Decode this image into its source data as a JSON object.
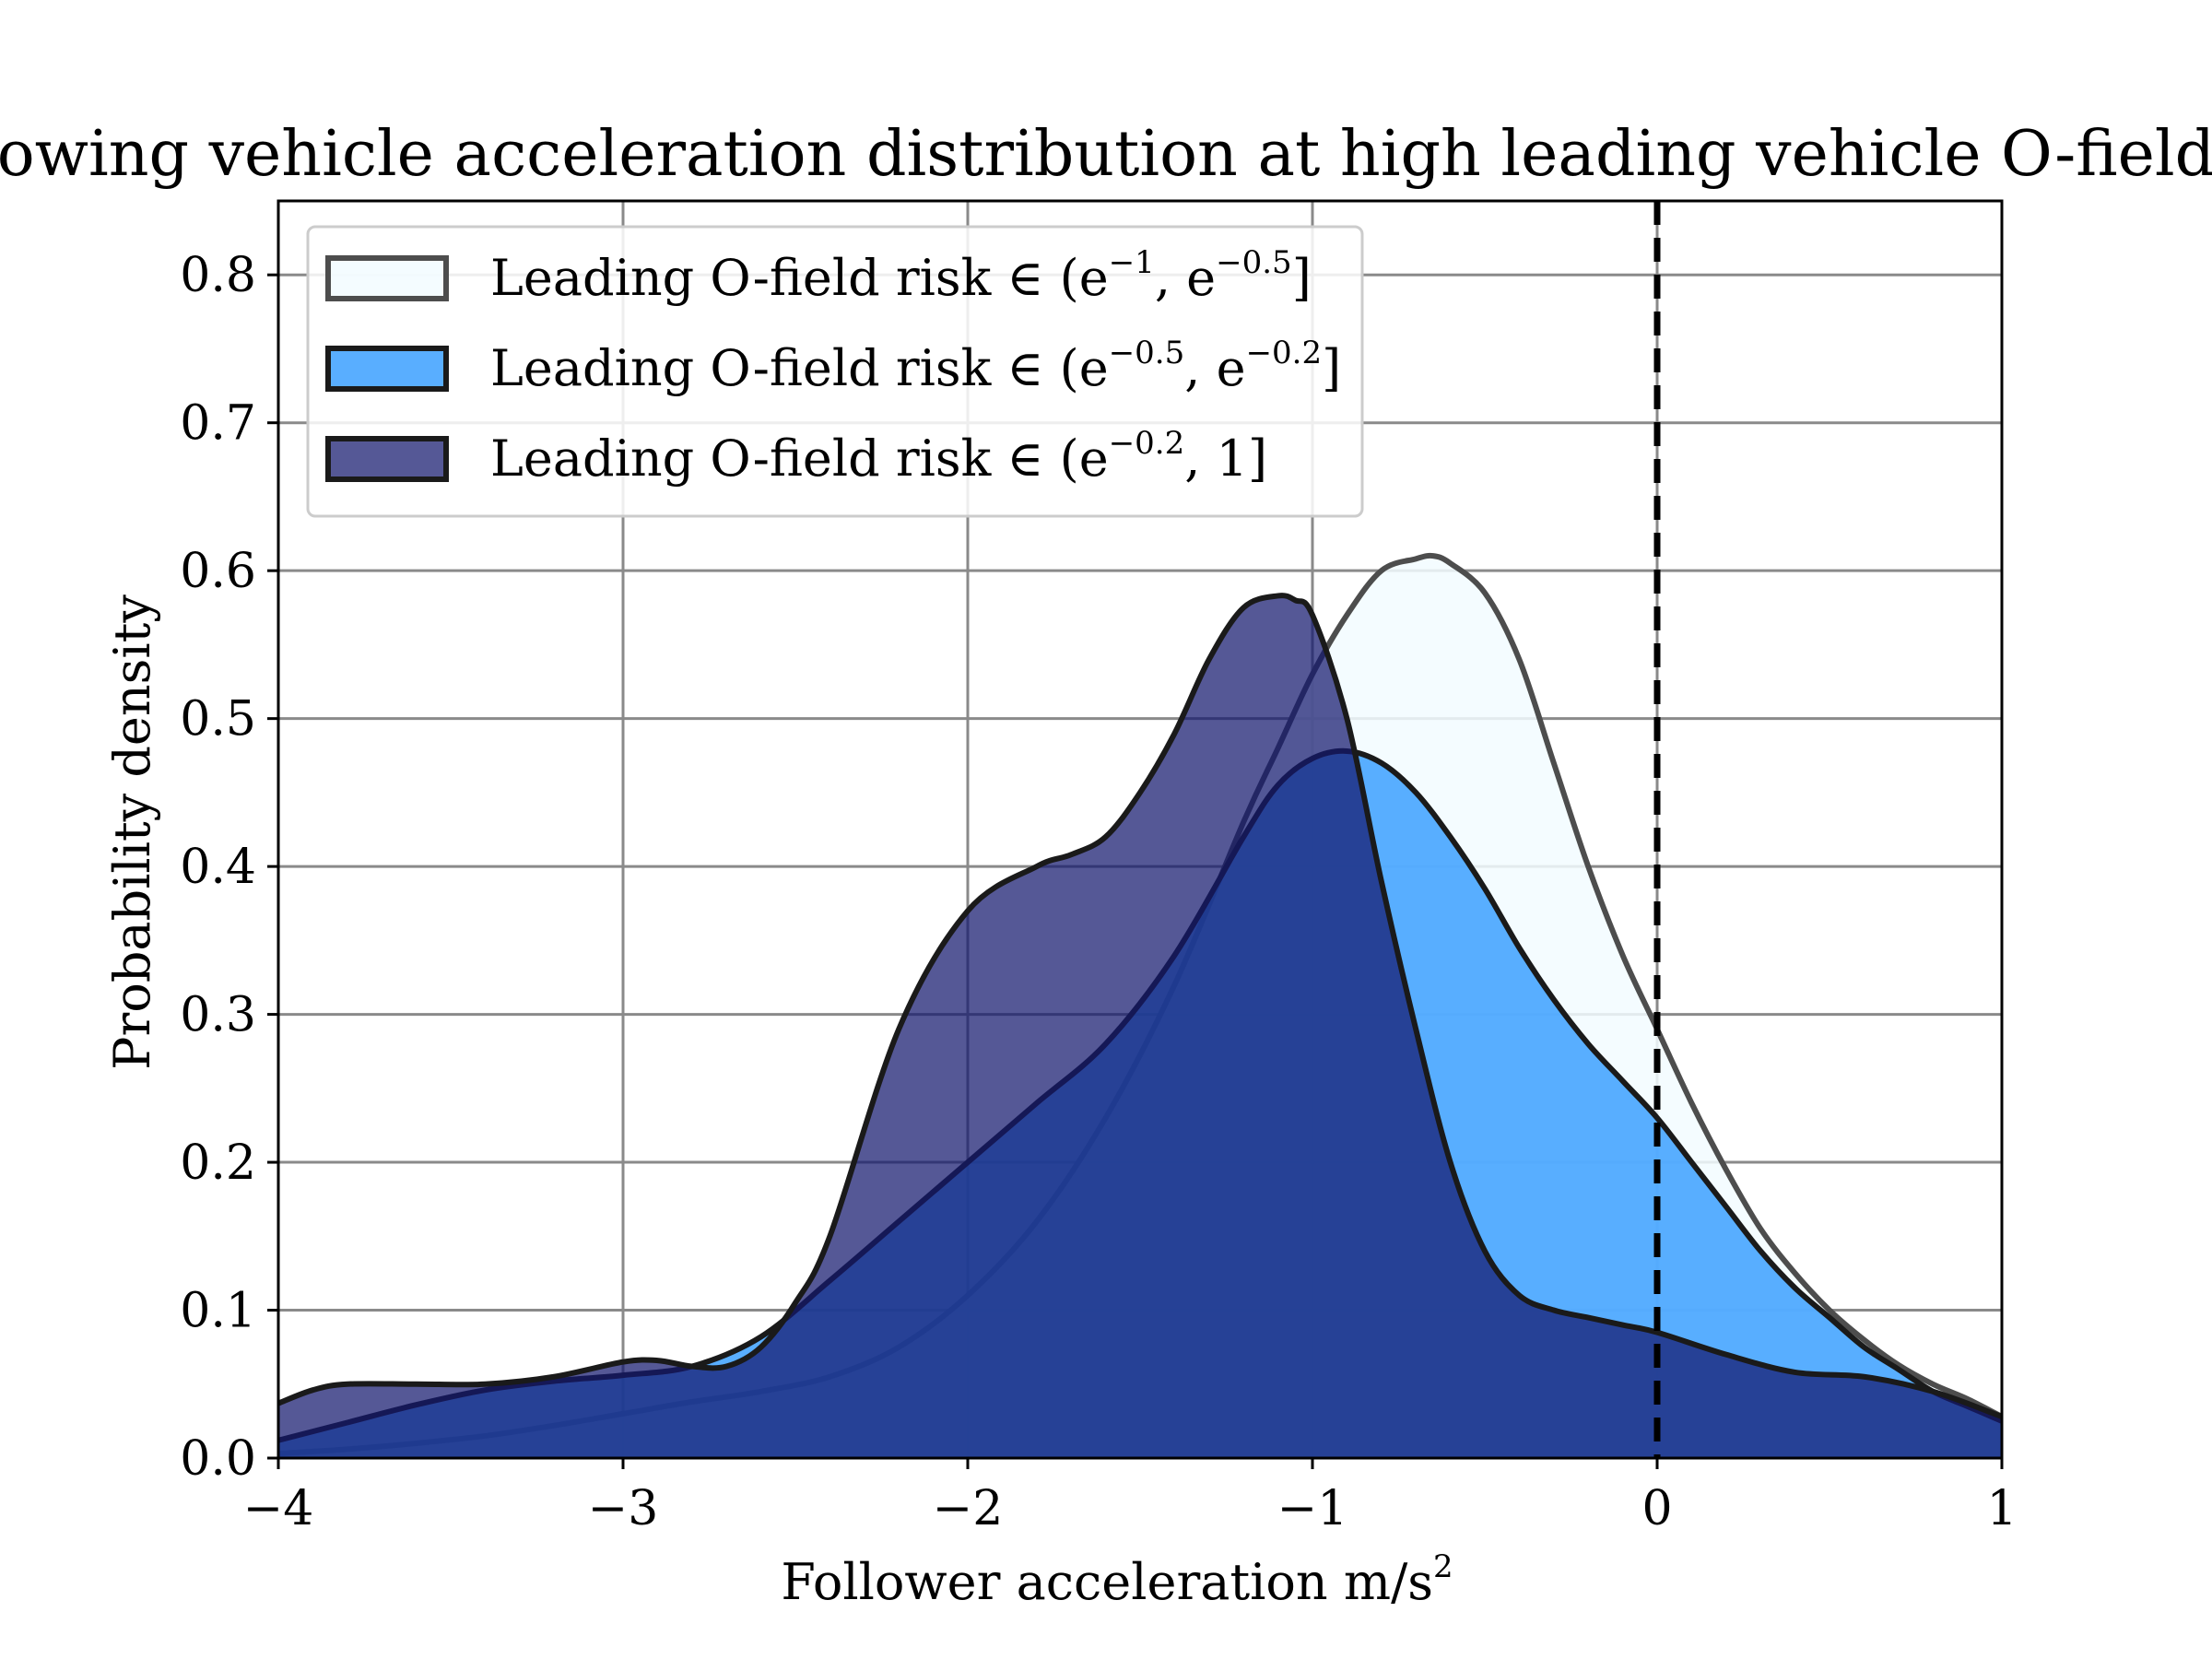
{
  "chart_data": {
    "type": "area",
    "title": "Following vehicle acceleration distribution at high leading vehicle O-field risk",
    "xlabel": "Follower acceleration m/s",
    "xlabel_sup": "2",
    "ylabel": "Probability density",
    "xlim": [
      -4,
      1
    ],
    "ylim": [
      0,
      0.85
    ],
    "xticks": [
      -4,
      -3,
      -2,
      -1,
      0,
      1
    ],
    "xtick_labels": [
      "−4",
      "−3",
      "−2",
      "−1",
      "0",
      "1"
    ],
    "yticks": [
      0.0,
      0.1,
      0.2,
      0.3,
      0.4,
      0.5,
      0.6,
      0.7,
      0.8
    ],
    "ytick_labels": [
      "0.0",
      "0.1",
      "0.2",
      "0.3",
      "0.4",
      "0.5",
      "0.6",
      "0.7",
      "0.8"
    ],
    "grid": true,
    "legend_position": "top-left",
    "vline": {
      "x": 0,
      "style": "dashed",
      "color": "#000000"
    },
    "series": [
      {
        "name": "Leading O-field risk ∈ (e^-1, e^-0.5]",
        "legend": {
          "prefix": "Leading O-field risk ∈ (",
          "a": "e",
          "a_sup": "−1",
          "sep": ", ",
          "b": "e",
          "b_sup": "−0.5",
          "suffix": "]"
        },
        "fill": "#f2fcff",
        "fill_opacity": 0.85,
        "stroke": "#4d4d4d",
        "x": [
          -4,
          -3.8,
          -3.6,
          -3.4,
          -3.2,
          -3,
          -2.8,
          -2.6,
          -2.4,
          -2.2,
          -2,
          -1.8,
          -1.6,
          -1.4,
          -1.2,
          -1.1,
          -1,
          -0.9,
          -0.8,
          -0.7,
          -0.65,
          -0.6,
          -0.5,
          -0.4,
          -0.3,
          -0.2,
          -0.1,
          0,
          0.1,
          0.2,
          0.3,
          0.4,
          0.5,
          0.6,
          0.7,
          0.8,
          0.9,
          1
        ],
        "values": [
          0.003,
          0.006,
          0.01,
          0.015,
          0.022,
          0.03,
          0.038,
          0.045,
          0.055,
          0.075,
          0.11,
          0.16,
          0.23,
          0.32,
          0.43,
          0.48,
          0.53,
          0.57,
          0.6,
          0.608,
          0.61,
          0.605,
          0.585,
          0.54,
          0.47,
          0.4,
          0.34,
          0.29,
          0.24,
          0.195,
          0.155,
          0.125,
          0.1,
          0.08,
          0.063,
          0.05,
          0.04,
          0.028
        ]
      },
      {
        "name": "Leading O-field risk ∈ (e^-0.5, e^-0.2]",
        "legend": {
          "prefix": "Leading O-field risk ∈ (",
          "a": "e",
          "a_sup": "−0.5",
          "sep": ", ",
          "b": "e",
          "b_sup": "−0.2",
          "suffix": "]"
        },
        "fill": "#3ca0ff",
        "fill_opacity": 0.85,
        "stroke": "#1a1a1a",
        "x": [
          -4,
          -3.8,
          -3.6,
          -3.4,
          -3.2,
          -3,
          -2.8,
          -2.6,
          -2.4,
          -2.2,
          -2,
          -1.8,
          -1.6,
          -1.4,
          -1.2,
          -1.1,
          -1,
          -0.9,
          -0.8,
          -0.7,
          -0.6,
          -0.5,
          -0.4,
          -0.3,
          -0.2,
          -0.1,
          0,
          0.1,
          0.2,
          0.3,
          0.4,
          0.5,
          0.6,
          0.7,
          0.8,
          0.9,
          1
        ],
        "values": [
          0.012,
          0.024,
          0.036,
          0.046,
          0.052,
          0.056,
          0.062,
          0.082,
          0.12,
          0.16,
          0.2,
          0.24,
          0.28,
          0.34,
          0.42,
          0.455,
          0.473,
          0.478,
          0.47,
          0.45,
          0.42,
          0.385,
          0.345,
          0.31,
          0.28,
          0.255,
          0.23,
          0.2,
          0.17,
          0.14,
          0.115,
          0.095,
          0.075,
          0.06,
          0.045,
          0.035,
          0.025
        ]
      },
      {
        "name": "Leading O-field risk ∈ (e^-0.2, 1]",
        "legend": {
          "prefix": "Leading O-field risk ∈ (",
          "a": "e",
          "a_sup": "−0.2",
          "sep": ", ",
          "b": "1",
          "b_sup": "",
          "suffix": "]"
        },
        "fill": "#13186e",
        "fill_opacity": 0.72,
        "stroke": "#1a1a1a",
        "x": [
          -4,
          -3.9,
          -3.8,
          -3.6,
          -3.4,
          -3.2,
          -3,
          -2.9,
          -2.8,
          -2.7,
          -2.6,
          -2.5,
          -2.4,
          -2.2,
          -2,
          -1.8,
          -1.7,
          -1.6,
          -1.5,
          -1.4,
          -1.3,
          -1.2,
          -1.1,
          -1.05,
          -1,
          -0.9,
          -0.8,
          -0.7,
          -0.6,
          -0.5,
          -0.4,
          -0.3,
          -0.2,
          -0.1,
          0,
          0.2,
          0.4,
          0.6,
          0.8,
          1
        ],
        "values": [
          0.037,
          0.046,
          0.05,
          0.05,
          0.05,
          0.055,
          0.065,
          0.066,
          0.062,
          0.062,
          0.075,
          0.105,
          0.15,
          0.29,
          0.37,
          0.4,
          0.408,
          0.42,
          0.45,
          0.49,
          0.54,
          0.575,
          0.583,
          0.58,
          0.57,
          0.5,
          0.39,
          0.29,
          0.2,
          0.14,
          0.11,
          0.1,
          0.095,
          0.09,
          0.085,
          0.07,
          0.058,
          0.055,
          0.045,
          0.028
        ]
      }
    ]
  }
}
